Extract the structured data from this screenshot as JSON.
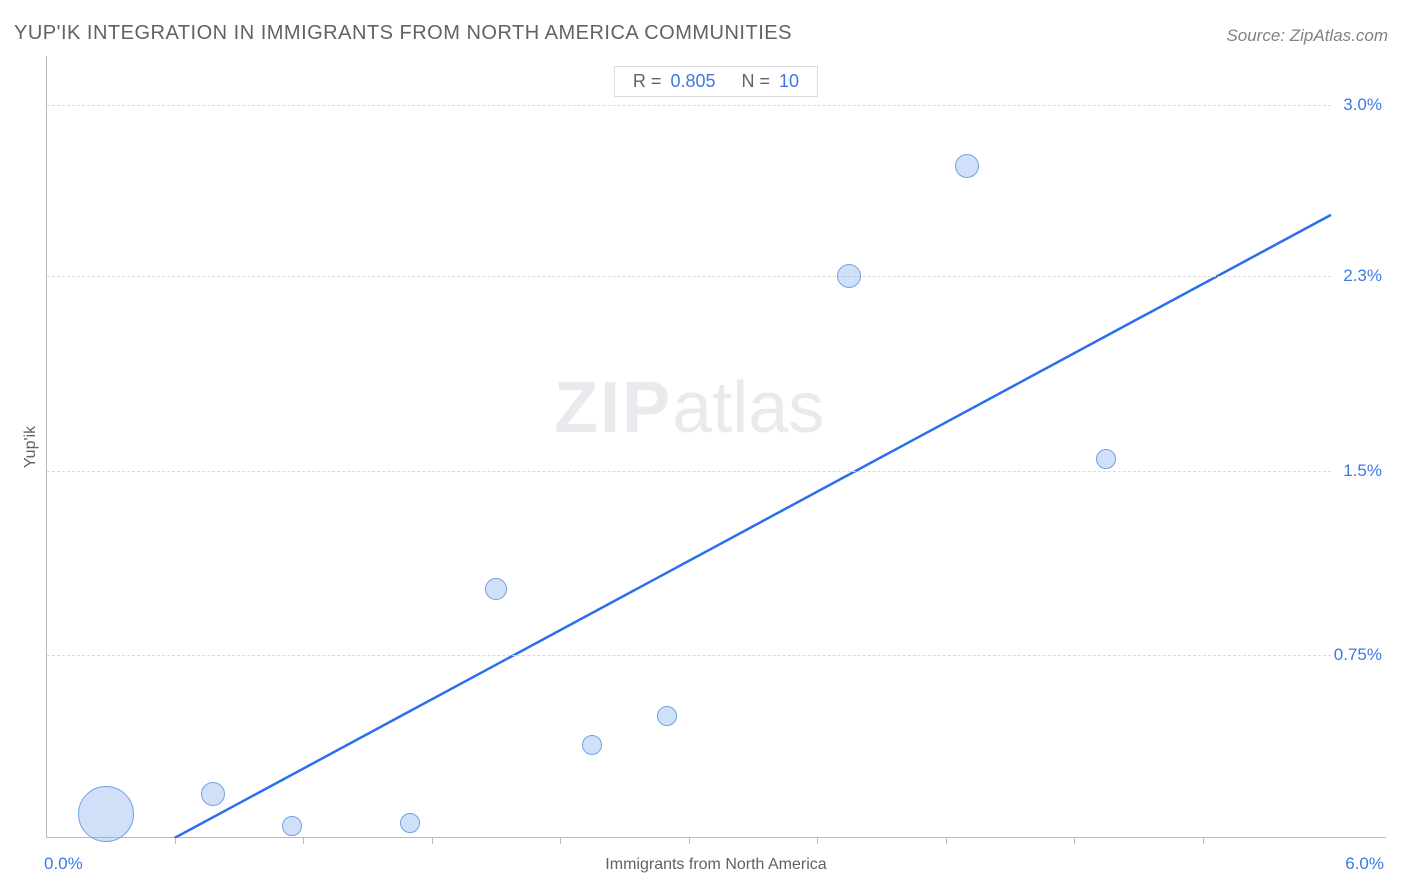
{
  "title": "YUP'IK INTEGRATION IN IMMIGRANTS FROM NORTH AMERICA COMMUNITIES",
  "source": "Source: ZipAtlas.com",
  "watermark_bold": "ZIP",
  "watermark_light": "atlas",
  "chart": {
    "type": "scatter",
    "x_label": "Immigrants from North America",
    "y_label": "Yup'ik",
    "x_min_label": "0.0%",
    "x_max_label": "6.0%",
    "xlim": [
      0.0,
      6.0
    ],
    "ylim": [
      0.0,
      3.2
    ],
    "y_ticks": [
      {
        "value": 0.75,
        "label": "0.75%"
      },
      {
        "value": 1.5,
        "label": "1.5%"
      },
      {
        "value": 2.3,
        "label": "2.3%"
      },
      {
        "value": 3.0,
        "label": "3.0%"
      }
    ],
    "x_ticks_minor": [
      0.6,
      1.2,
      1.8,
      2.4,
      3.0,
      3.6,
      4.2,
      4.8,
      5.4
    ],
    "grid_color": "#d9dbde",
    "axis_color": "#b8bbbf",
    "background_color": "#ffffff",
    "bubble_fill": "rgba(120,165,235,0.35)",
    "bubble_stroke": "#6fa1e6",
    "trend_color": "#2a6ff0",
    "trend_width": 2.5,
    "trend_line": {
      "x1": 0.6,
      "y1": 0.0,
      "x2": 6.0,
      "y2": 2.55
    },
    "points": [
      {
        "x": 0.28,
        "y": 0.1,
        "r": 28
      },
      {
        "x": 0.78,
        "y": 0.18,
        "r": 12
      },
      {
        "x": 1.15,
        "y": 0.05,
        "r": 10
      },
      {
        "x": 1.7,
        "y": 0.06,
        "r": 10
      },
      {
        "x": 2.1,
        "y": 1.02,
        "r": 11
      },
      {
        "x": 2.55,
        "y": 0.38,
        "r": 10
      },
      {
        "x": 2.9,
        "y": 0.5,
        "r": 10
      },
      {
        "x": 3.75,
        "y": 2.3,
        "r": 12
      },
      {
        "x": 4.3,
        "y": 2.75,
        "r": 12
      },
      {
        "x": 4.95,
        "y": 1.55,
        "r": 10
      }
    ],
    "legend": {
      "r_label": "R =",
      "r_value": "0.805",
      "n_label": "N =",
      "n_value": "10"
    }
  }
}
